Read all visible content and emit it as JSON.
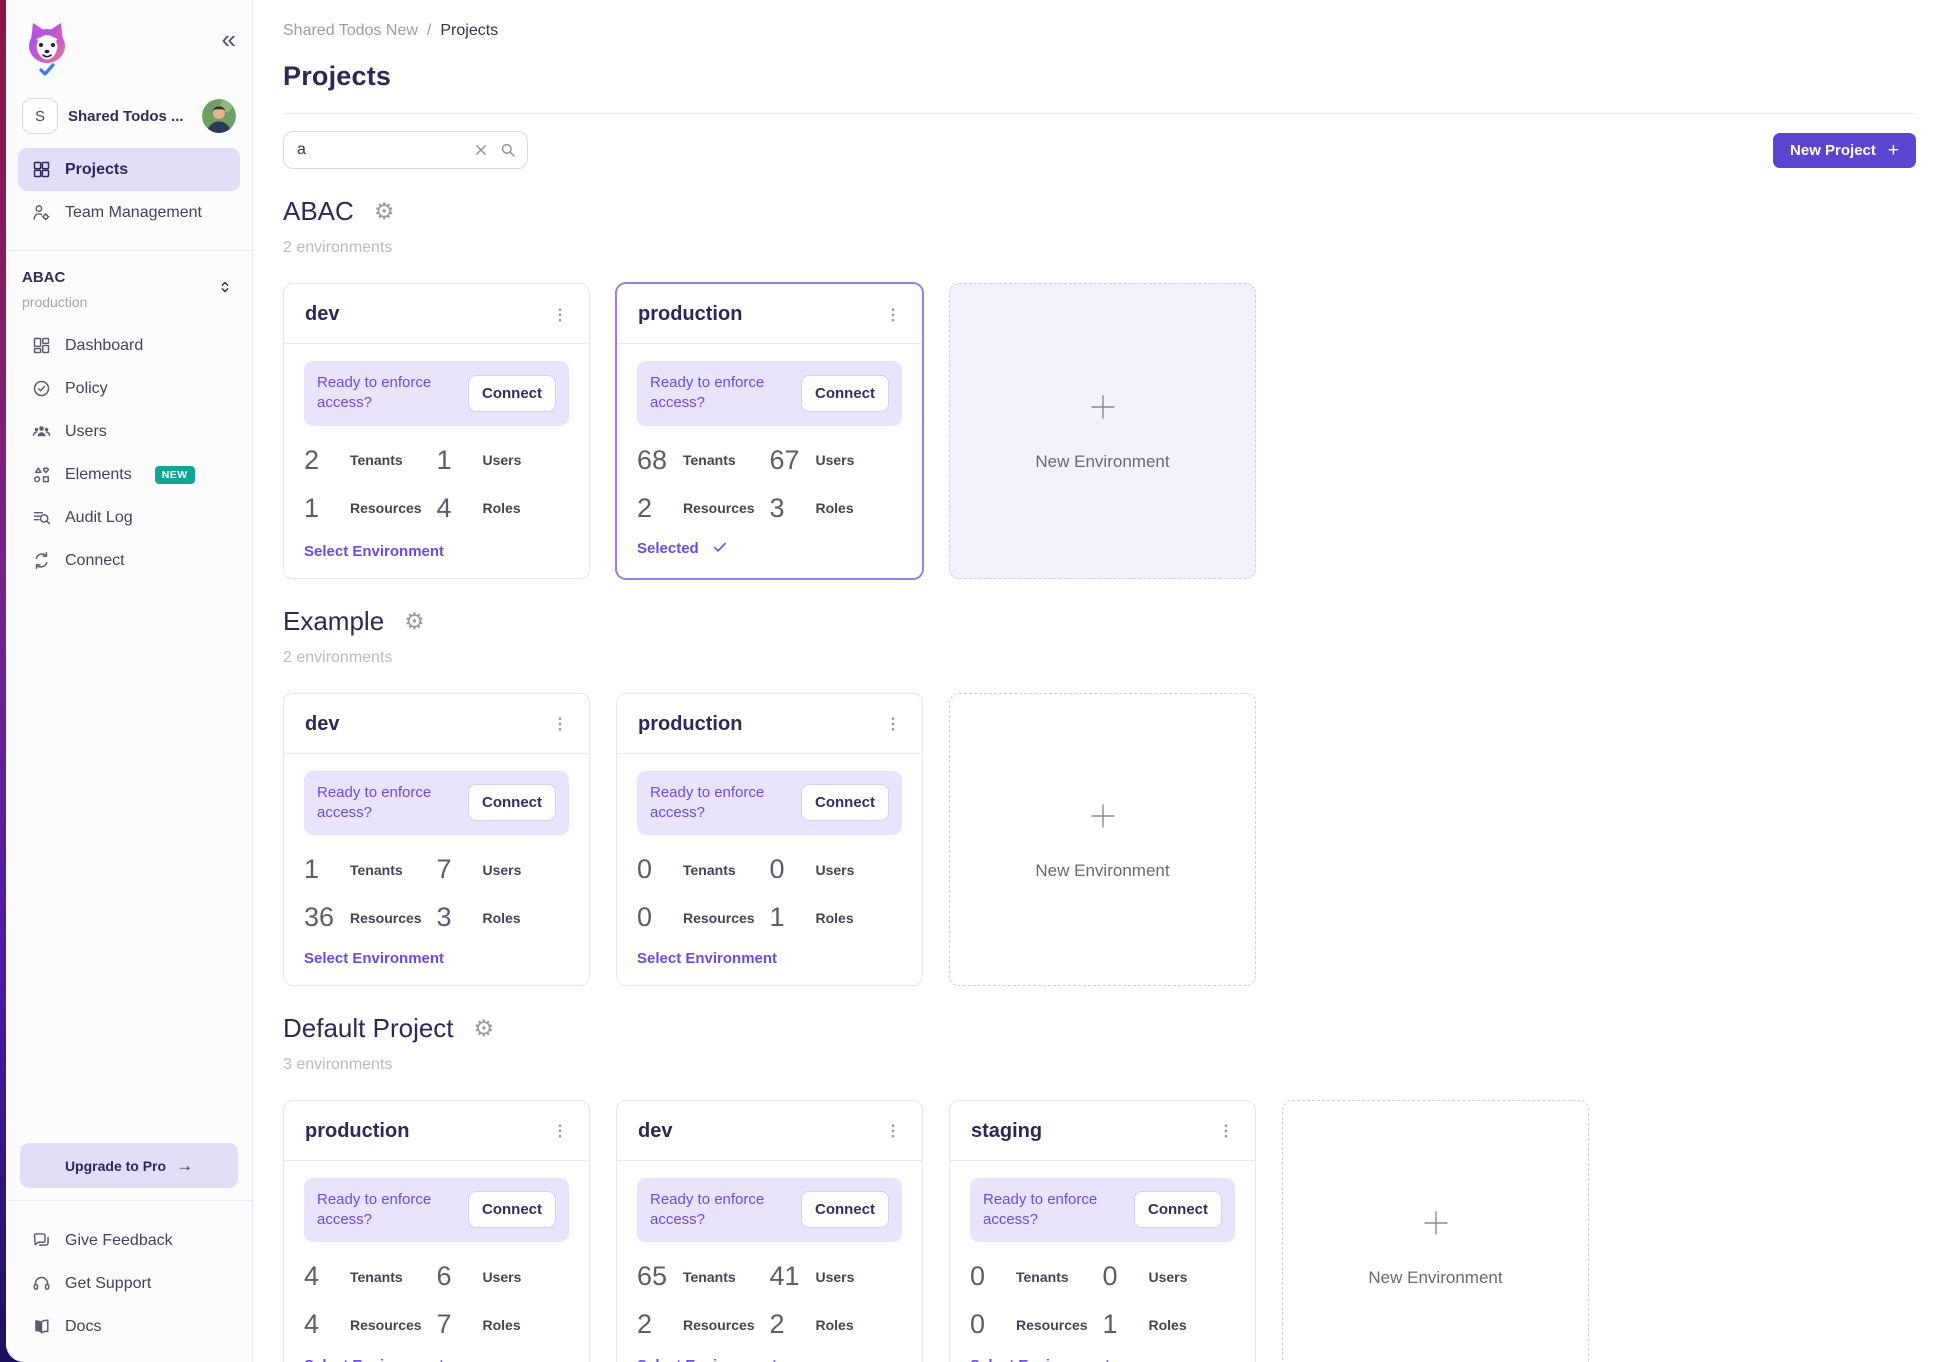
{
  "colors": {
    "accent_purple": "#6a4be4",
    "button_purple": "#5b44cf",
    "banner_bg": "#e9e3fb",
    "active_nav_bg": "#e4ddf8",
    "badge_teal": "#12a594",
    "heading_indigo": "#2d2859",
    "selected_border": "#967cec"
  },
  "sidebar": {
    "collapse_icon": "«",
    "workspace": {
      "initial": "S",
      "name": "Shared Todos ..."
    },
    "nav": [
      {
        "label": "Projects",
        "icon": "grid-icon",
        "active": true
      },
      {
        "label": "Team Management",
        "icon": "team-icon",
        "active": false
      }
    ],
    "project_selector": {
      "project": "ABAC",
      "environment": "production"
    },
    "project_nav": [
      {
        "label": "Dashboard",
        "icon": "dashboard-icon"
      },
      {
        "label": "Policy",
        "icon": "policy-icon"
      },
      {
        "label": "Users",
        "icon": "users-icon"
      },
      {
        "label": "Elements",
        "icon": "elements-icon",
        "badge": "NEW"
      },
      {
        "label": "Audit Log",
        "icon": "audit-log-icon"
      },
      {
        "label": "Connect",
        "icon": "connect-icon"
      }
    ],
    "upgrade_label": "Upgrade to Pro",
    "footer_nav": [
      {
        "label": "Give Feedback",
        "icon": "feedback-icon"
      },
      {
        "label": "Get Support",
        "icon": "support-icon"
      },
      {
        "label": "Docs",
        "icon": "docs-icon"
      }
    ]
  },
  "header": {
    "breadcrumb": [
      "Shared Todos New",
      "Projects"
    ],
    "breadcrumb_separator": "/",
    "title": "Projects",
    "search_value": "a",
    "new_project_label": "New Project"
  },
  "card_strings": {
    "banner": "Ready to enforce access?",
    "connect": "Connect",
    "select": "Select Environment",
    "selected": "Selected",
    "new_environment": "New Environment"
  },
  "projects": [
    {
      "name": "ABAC",
      "env_count": "2 environments",
      "new_env_tinted": true,
      "environments": [
        {
          "name": "dev",
          "state": "select",
          "selected": false,
          "stats": [
            {
              "label": "Tenants",
              "value": "2"
            },
            {
              "label": "Users",
              "value": "1"
            },
            {
              "label": "Resources",
              "value": "1"
            },
            {
              "label": "Roles",
              "value": "4"
            }
          ]
        },
        {
          "name": "production",
          "state": "selected",
          "selected": true,
          "stats": [
            {
              "label": "Tenants",
              "value": "68"
            },
            {
              "label": "Users",
              "value": "67"
            },
            {
              "label": "Resources",
              "value": "2"
            },
            {
              "label": "Roles",
              "value": "3"
            }
          ]
        }
      ]
    },
    {
      "name": "Example",
      "env_count": "2 environments",
      "new_env_tinted": false,
      "environments": [
        {
          "name": "dev",
          "state": "select",
          "selected": false,
          "stats": [
            {
              "label": "Tenants",
              "value": "1"
            },
            {
              "label": "Users",
              "value": "7"
            },
            {
              "label": "Resources",
              "value": "36"
            },
            {
              "label": "Roles",
              "value": "3"
            }
          ]
        },
        {
          "name": "production",
          "state": "select",
          "selected": false,
          "stats": [
            {
              "label": "Tenants",
              "value": "0"
            },
            {
              "label": "Users",
              "value": "0"
            },
            {
              "label": "Resources",
              "value": "0"
            },
            {
              "label": "Roles",
              "value": "1"
            }
          ]
        }
      ]
    },
    {
      "name": "Default Project",
      "env_count": "3 environments",
      "new_env_tinted": false,
      "environments": [
        {
          "name": "production",
          "state": "select",
          "selected": false,
          "stats": [
            {
              "label": "Tenants",
              "value": "4"
            },
            {
              "label": "Users",
              "value": "6"
            },
            {
              "label": "Resources",
              "value": "4"
            },
            {
              "label": "Roles",
              "value": "7"
            }
          ]
        },
        {
          "name": "dev",
          "state": "select",
          "selected": false,
          "stats": [
            {
              "label": "Tenants",
              "value": "65"
            },
            {
              "label": "Users",
              "value": "41"
            },
            {
              "label": "Resources",
              "value": "2"
            },
            {
              "label": "Roles",
              "value": "2"
            }
          ]
        },
        {
          "name": "staging",
          "state": "select",
          "selected": false,
          "stats": [
            {
              "label": "Tenants",
              "value": "0"
            },
            {
              "label": "Users",
              "value": "0"
            },
            {
              "label": "Resources",
              "value": "0"
            },
            {
              "label": "Roles",
              "value": "1"
            }
          ]
        }
      ]
    }
  ]
}
